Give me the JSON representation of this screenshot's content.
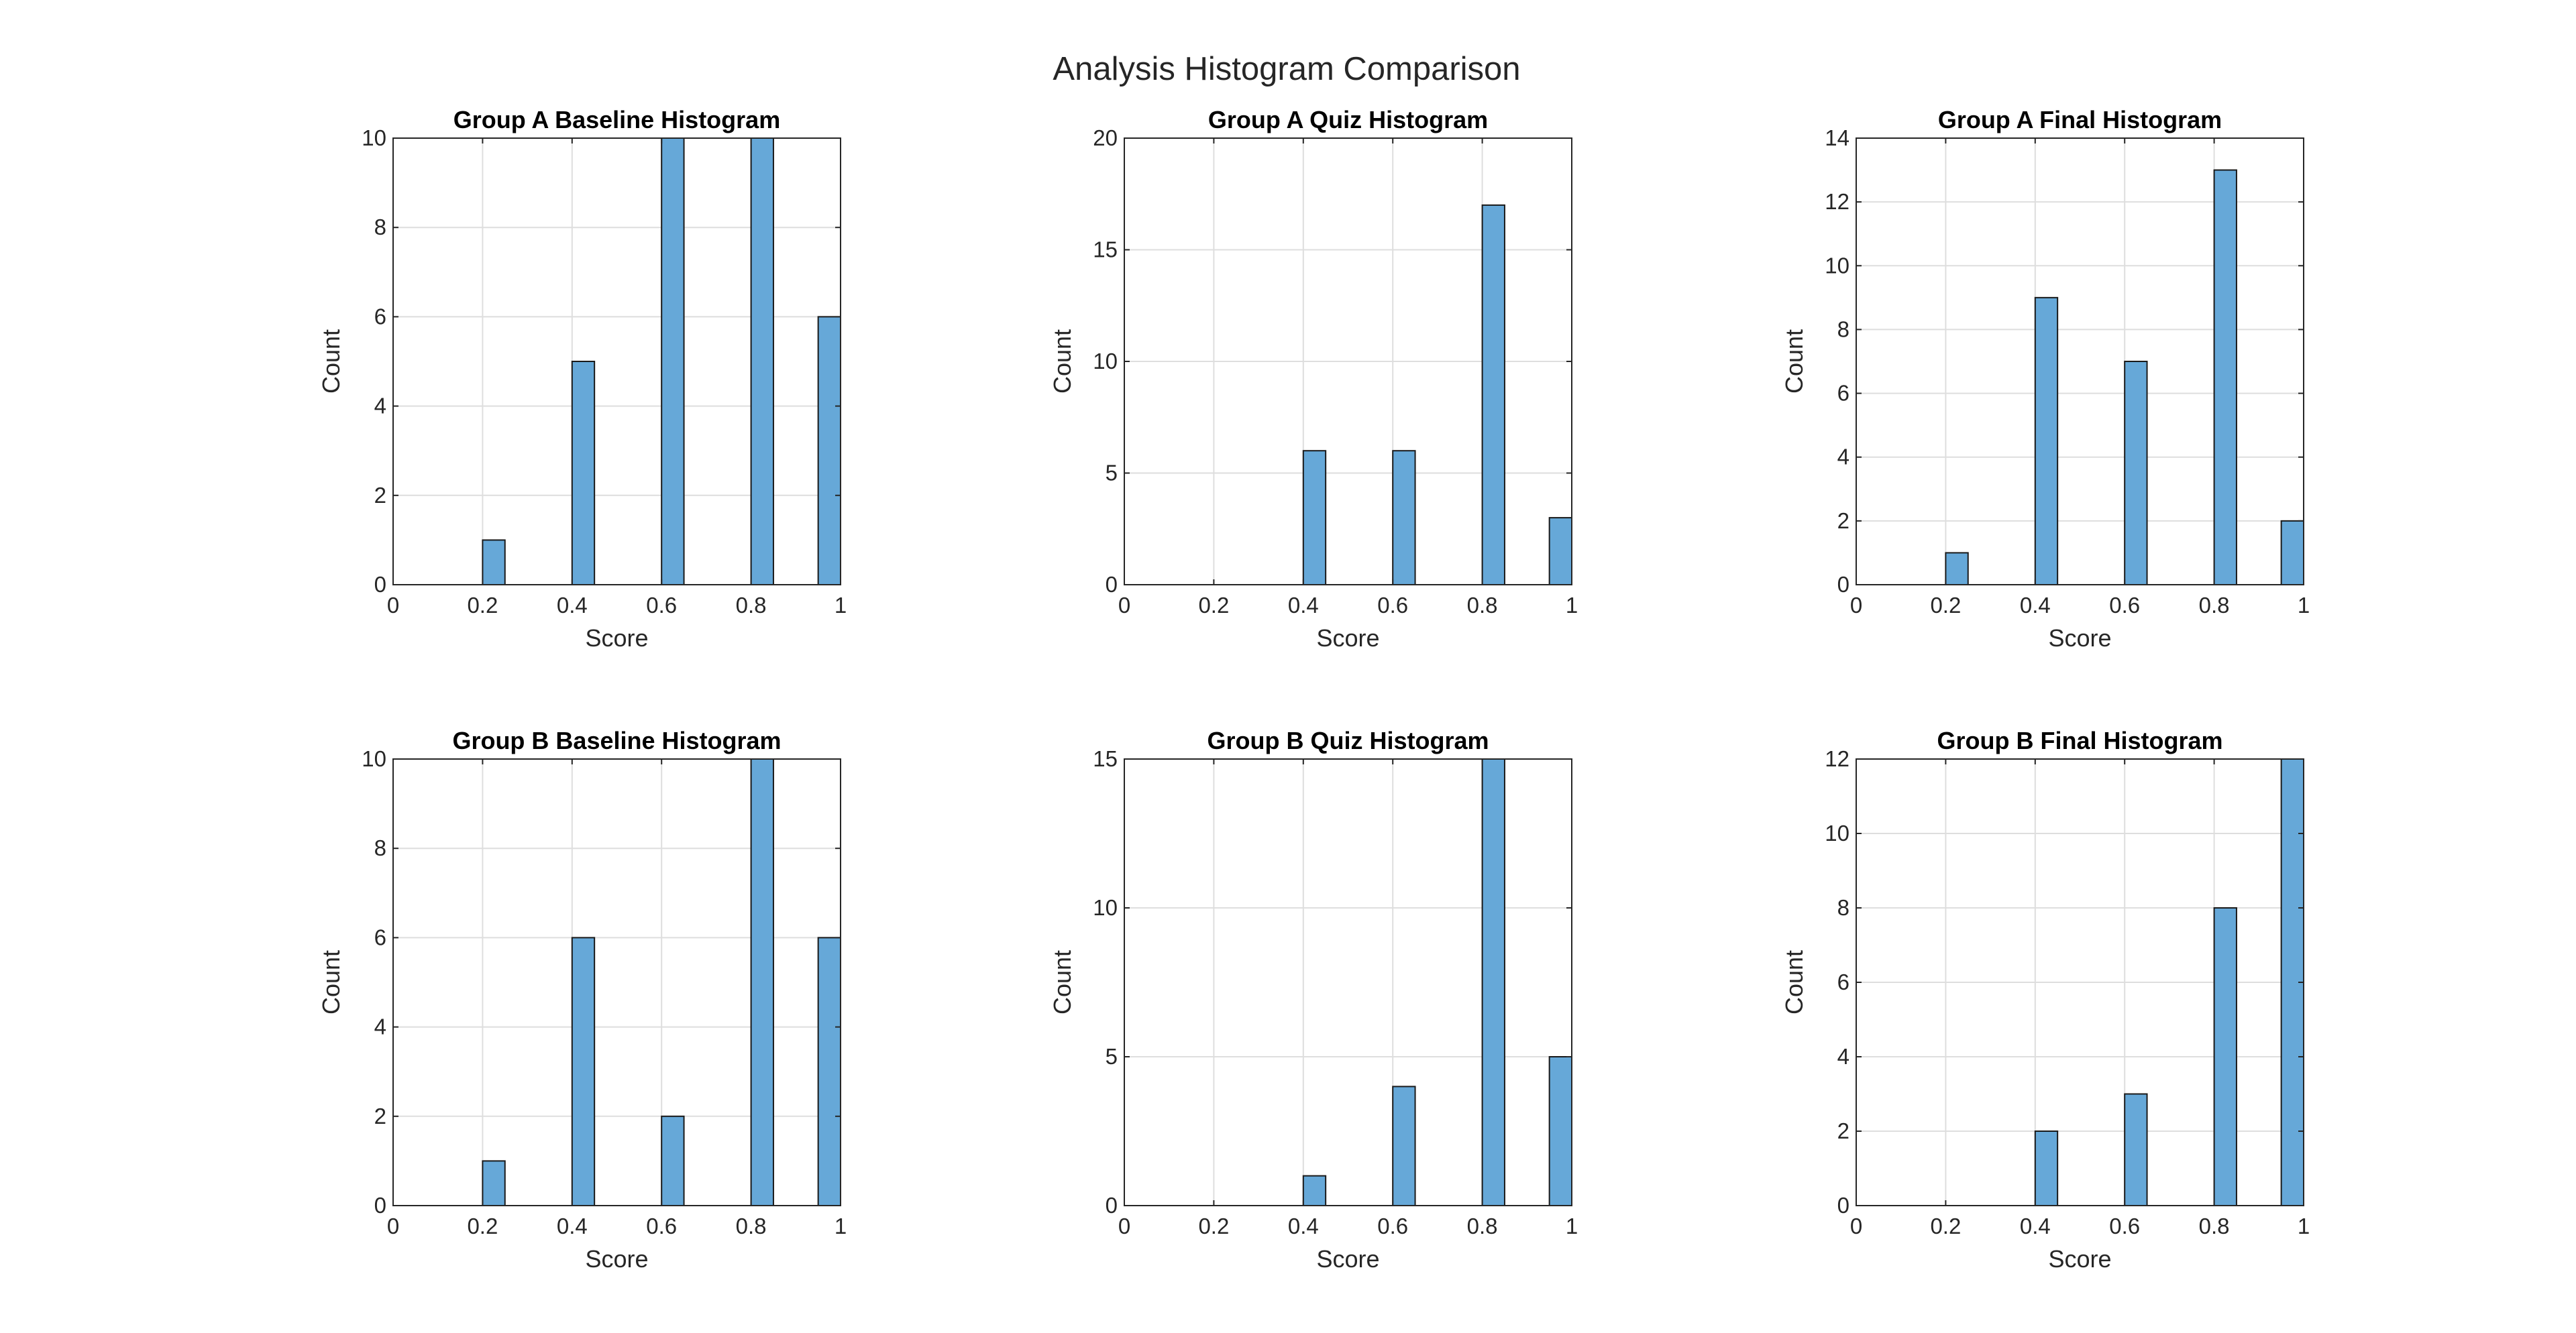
{
  "figure": {
    "suptitle": "Analysis Histogram Comparison",
    "bar_color": "#66a8d8",
    "bar_edge_color": "#1a1a1a",
    "grid_color": "#dedede",
    "axis_color": "#262626"
  },
  "chart_data": [
    {
      "type": "bar",
      "title": "Group A Baseline Histogram",
      "xlabel": "Score",
      "ylabel": "Count",
      "xlim": [
        0,
        1
      ],
      "ylim": [
        0,
        10
      ],
      "xticks": [
        0,
        0.2,
        0.4,
        0.6,
        0.8,
        1
      ],
      "xtick_labels": [
        "0",
        "0.2",
        "0.4",
        "0.6",
        "0.8",
        "1"
      ],
      "yticks": [
        0,
        2,
        4,
        6,
        8,
        10
      ],
      "ytick_labels": [
        "0",
        "2",
        "4",
        "6",
        "8",
        "10"
      ],
      "grid": true,
      "bin_width": 0.05,
      "bin_starts": [
        0.2,
        0.4,
        0.6,
        0.8,
        0.95
      ],
      "values": [
        1,
        5,
        10,
        10,
        6
      ]
    },
    {
      "type": "bar",
      "title": "Group A Quiz Histogram",
      "xlabel": "Score",
      "ylabel": "Count",
      "xlim": [
        0,
        1
      ],
      "ylim": [
        0,
        20
      ],
      "xticks": [
        0,
        0.2,
        0.4,
        0.6,
        0.8,
        1
      ],
      "xtick_labels": [
        "0",
        "0.2",
        "0.4",
        "0.6",
        "0.8",
        "1"
      ],
      "yticks": [
        0,
        5,
        10,
        15,
        20
      ],
      "ytick_labels": [
        "0",
        "5",
        "10",
        "15",
        "20"
      ],
      "grid": true,
      "bin_width": 0.05,
      "bin_starts": [
        0.4,
        0.6,
        0.8,
        0.95
      ],
      "values": [
        6,
        6,
        17,
        3
      ]
    },
    {
      "type": "bar",
      "title": "Group A Final Histogram",
      "xlabel": "Score",
      "ylabel": "Count",
      "xlim": [
        0,
        1
      ],
      "ylim": [
        0,
        14
      ],
      "xticks": [
        0,
        0.2,
        0.4,
        0.6,
        0.8,
        1
      ],
      "xtick_labels": [
        "0",
        "0.2",
        "0.4",
        "0.6",
        "0.8",
        "1"
      ],
      "yticks": [
        0,
        2,
        4,
        6,
        8,
        10,
        12,
        14
      ],
      "ytick_labels": [
        "0",
        "2",
        "4",
        "6",
        "8",
        "10",
        "12",
        "14"
      ],
      "grid": true,
      "bin_width": 0.05,
      "bin_starts": [
        0.2,
        0.4,
        0.6,
        0.8,
        0.95
      ],
      "values": [
        1,
        9,
        7,
        13,
        2
      ]
    },
    {
      "type": "bar",
      "title": "Group B Baseline Histogram",
      "xlabel": "Score",
      "ylabel": "Count",
      "xlim": [
        0,
        1
      ],
      "ylim": [
        0,
        10
      ],
      "xticks": [
        0,
        0.2,
        0.4,
        0.6,
        0.8,
        1
      ],
      "xtick_labels": [
        "0",
        "0.2",
        "0.4",
        "0.6",
        "0.8",
        "1"
      ],
      "yticks": [
        0,
        2,
        4,
        6,
        8,
        10
      ],
      "ytick_labels": [
        "0",
        "2",
        "4",
        "6",
        "8",
        "10"
      ],
      "grid": true,
      "bin_width": 0.05,
      "bin_starts": [
        0.2,
        0.4,
        0.6,
        0.8,
        0.95
      ],
      "values": [
        1,
        6,
        2,
        10,
        6
      ]
    },
    {
      "type": "bar",
      "title": "Group B Quiz Histogram",
      "xlabel": "Score",
      "ylabel": "Count",
      "xlim": [
        0,
        1
      ],
      "ylim": [
        0,
        15
      ],
      "xticks": [
        0,
        0.2,
        0.4,
        0.6,
        0.8,
        1
      ],
      "xtick_labels": [
        "0",
        "0.2",
        "0.4",
        "0.6",
        "0.8",
        "1"
      ],
      "yticks": [
        0,
        5,
        10,
        15
      ],
      "ytick_labels": [
        "0",
        "5",
        "10",
        "15"
      ],
      "grid": true,
      "bin_width": 0.05,
      "bin_starts": [
        0.4,
        0.6,
        0.8,
        0.95
      ],
      "values": [
        1,
        4,
        15,
        5
      ]
    },
    {
      "type": "bar",
      "title": "Group B Final Histogram",
      "xlabel": "Score",
      "ylabel": "Count",
      "xlim": [
        0,
        1
      ],
      "ylim": [
        0,
        12
      ],
      "xticks": [
        0,
        0.2,
        0.4,
        0.6,
        0.8,
        1
      ],
      "xtick_labels": [
        "0",
        "0.2",
        "0.4",
        "0.6",
        "0.8",
        "1"
      ],
      "yticks": [
        0,
        2,
        4,
        6,
        8,
        10,
        12
      ],
      "ytick_labels": [
        "0",
        "2",
        "4",
        "6",
        "8",
        "10",
        "12"
      ],
      "grid": true,
      "bin_width": 0.05,
      "bin_starts": [
        0.4,
        0.6,
        0.8,
        0.95
      ],
      "values": [
        2,
        3,
        8,
        12
      ]
    }
  ]
}
